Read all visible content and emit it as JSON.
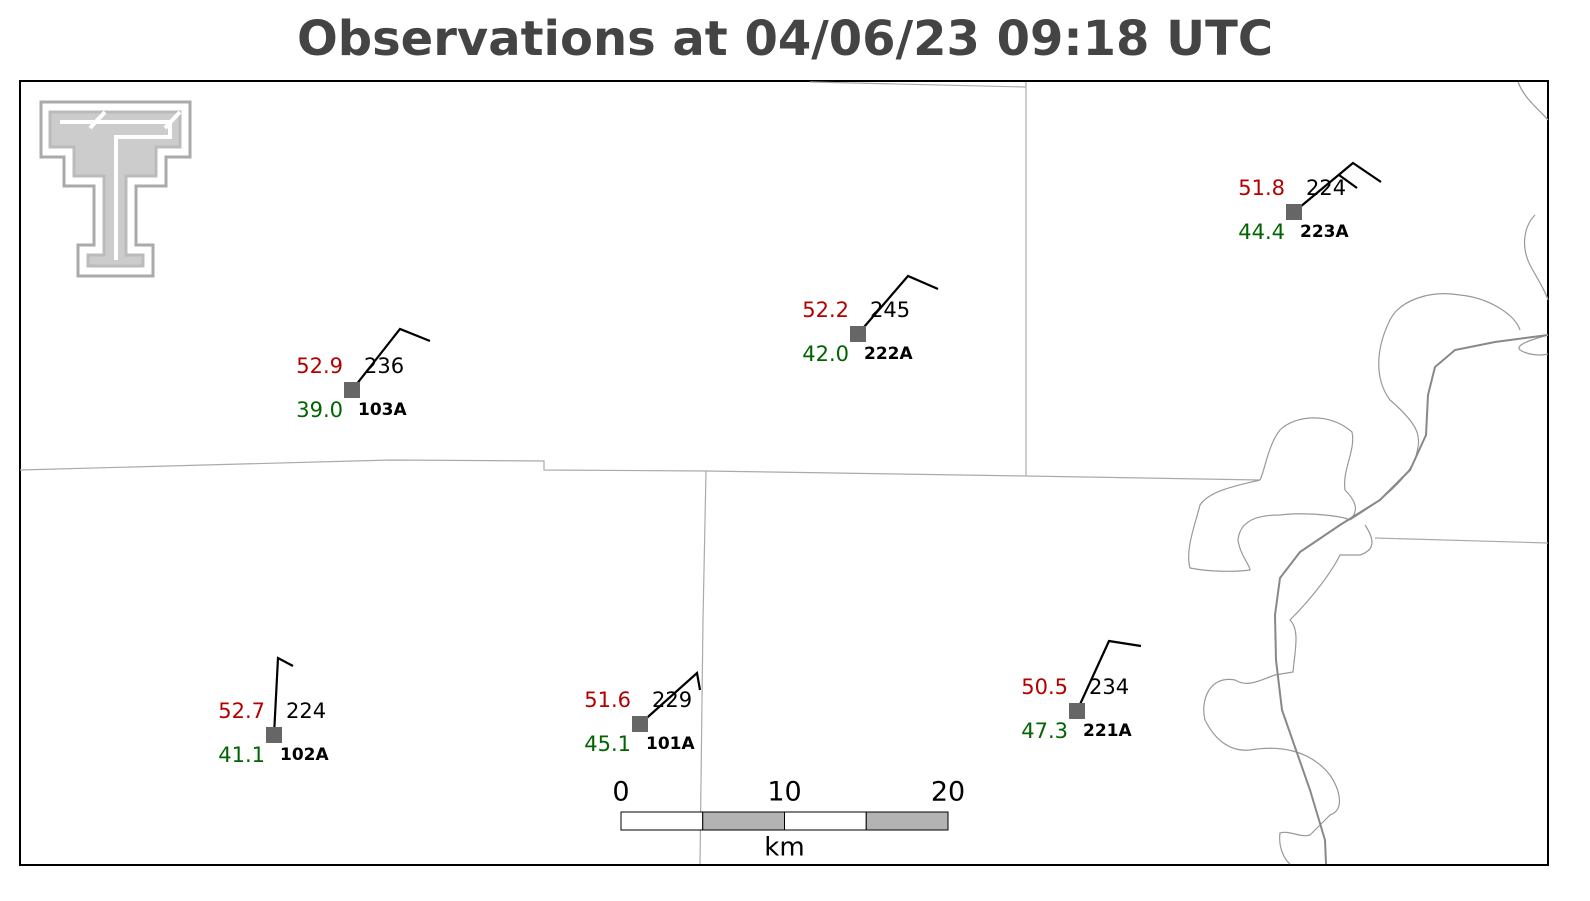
{
  "title": "Observations at 04/06/23 09:18 UTC",
  "stations": [
    {
      "id": "103A",
      "temperature": "52.9",
      "dewpoint": "39.0",
      "pressure": "236"
    },
    {
      "id": "222A",
      "temperature": "52.2",
      "dewpoint": "42.0",
      "pressure": "245"
    },
    {
      "id": "223A",
      "temperature": "51.8",
      "dewpoint": "44.4",
      "pressure": "224"
    },
    {
      "id": "102A",
      "temperature": "52.7",
      "dewpoint": "41.1",
      "pressure": "224"
    },
    {
      "id": "101A",
      "temperature": "51.6",
      "dewpoint": "45.1",
      "pressure": "229"
    },
    {
      "id": "221A",
      "temperature": "50.5",
      "dewpoint": "47.3",
      "pressure": "234"
    }
  ],
  "scale_bar": {
    "ticks": [
      "0",
      "10",
      "20"
    ],
    "unit": "km"
  }
}
